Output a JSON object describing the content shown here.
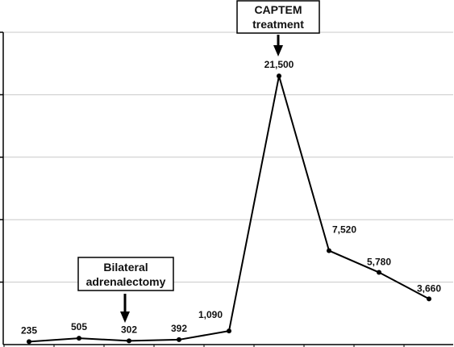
{
  "chart_data": {
    "type": "line",
    "x": [
      1,
      2,
      3,
      4,
      5,
      6,
      7,
      8,
      9
    ],
    "values": [
      235,
      505,
      302,
      392,
      1090,
      21500,
      7520,
      5780,
      3660
    ],
    "data_labels": [
      "235",
      "505",
      "302",
      "392",
      "1,090",
      "21,500",
      "7,520",
      "5,780",
      "3,660"
    ],
    "ylim": [
      0,
      25000
    ],
    "yticks": [
      0,
      5000,
      10000,
      15000,
      20000,
      25000
    ],
    "grid": true,
    "title": "",
    "xlabel": "",
    "ylabel": "",
    "annotations": [
      {
        "id": "adrenalectomy",
        "lines": [
          "Bilateral",
          "adrenalectomy"
        ],
        "at_point": 3
      },
      {
        "id": "captem",
        "lines": [
          "CAPTEM",
          "treatment"
        ],
        "at_point": 6
      }
    ]
  },
  "colors": {
    "line": "#000000",
    "grid": "#c8c8c8",
    "text": "#111111"
  }
}
